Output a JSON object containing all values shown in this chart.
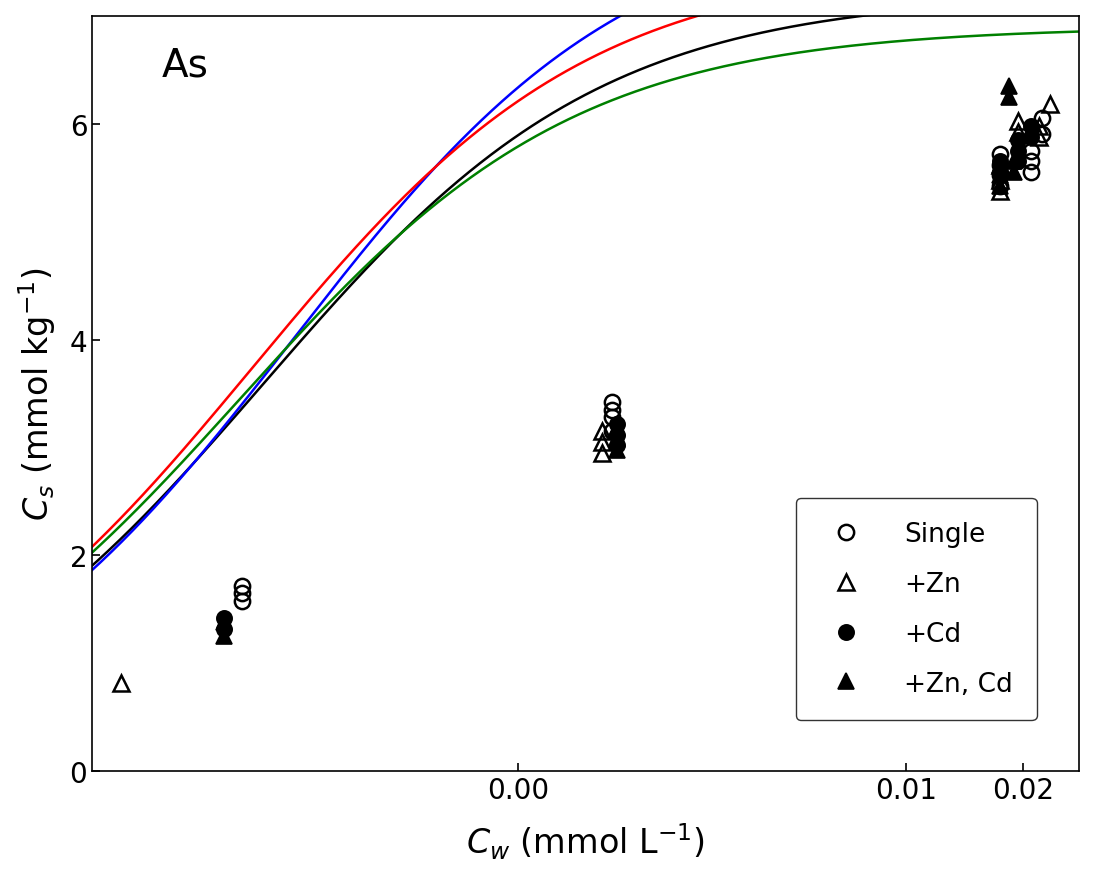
{
  "title": "As",
  "ylim": [
    0,
    7
  ],
  "xlim": [
    8e-05,
    0.028
  ],
  "series": {
    "Single": {
      "x": [
        0.000195,
        0.000195,
        0.000195,
        0.00175,
        0.00175,
        0.00175,
        0.00175,
        0.0175,
        0.0175,
        0.0175,
        0.0175,
        0.021,
        0.021,
        0.021,
        0.0225,
        0.0225
      ],
      "y": [
        1.58,
        1.65,
        1.72,
        3.15,
        3.28,
        3.35,
        3.42,
        5.42,
        5.52,
        5.62,
        5.72,
        5.55,
        5.65,
        5.75,
        5.9,
        6.05
      ],
      "marker": "o",
      "filled": false,
      "zorder": 4
    },
    "+Zn": {
      "x": [
        9.5e-05,
        0.00165,
        0.00165,
        0.00165,
        0.0175,
        0.0175,
        0.0175,
        0.0195,
        0.0195,
        0.022,
        0.022,
        0.0235
      ],
      "y": [
        0.82,
        2.95,
        3.05,
        3.15,
        5.38,
        5.48,
        5.62,
        5.92,
        6.02,
        5.88,
        5.98,
        6.18
      ],
      "marker": "^",
      "filled": false,
      "zorder": 4
    },
    "+Cd": {
      "x": [
        0.000175,
        0.000175,
        0.0018,
        0.0018,
        0.0018,
        0.0175,
        0.0175,
        0.0195,
        0.0195,
        0.0195,
        0.021,
        0.021
      ],
      "y": [
        1.32,
        1.42,
        3.02,
        3.12,
        3.22,
        5.55,
        5.65,
        5.65,
        5.75,
        5.85,
        5.88,
        5.98
      ],
      "marker": "o",
      "filled": true,
      "zorder": 4
    },
    "+Zn, Cd": {
      "x": [
        0.000175,
        0.000175,
        0.0018,
        0.0018,
        0.0018,
        0.0175,
        0.0175,
        0.0175,
        0.0185,
        0.0185,
        0.019,
        0.019
      ],
      "y": [
        1.25,
        1.38,
        2.98,
        3.08,
        3.18,
        5.42,
        5.52,
        5.62,
        6.25,
        6.35,
        5.55,
        5.65
      ],
      "marker": "^",
      "filled": true,
      "zorder": 4
    }
  },
  "langmuir_params": {
    "Single": {
      "qmax": 7.2,
      "KL": 4500
    },
    "+Zn": {
      "qmax": 8.0,
      "KL": 3800
    },
    "+Cd": {
      "qmax": 6.9,
      "KL": 5200
    },
    "+Zn, Cd": {
      "qmax": 7.5,
      "KL": 4800
    }
  },
  "curve_colors": {
    "Single": "#000000",
    "+Zn": "#0000ff",
    "+Cd": "#008000",
    "+Zn, Cd": "#ff0000"
  },
  "legend_labels": [
    "Single",
    "+Zn",
    "+Cd",
    "+Zn, Cd"
  ],
  "background_color": "#ffffff",
  "tick_fontsize": 20,
  "label_fontsize": 24,
  "legend_fontsize": 19,
  "title_fontsize": 28,
  "marker_size": 11
}
